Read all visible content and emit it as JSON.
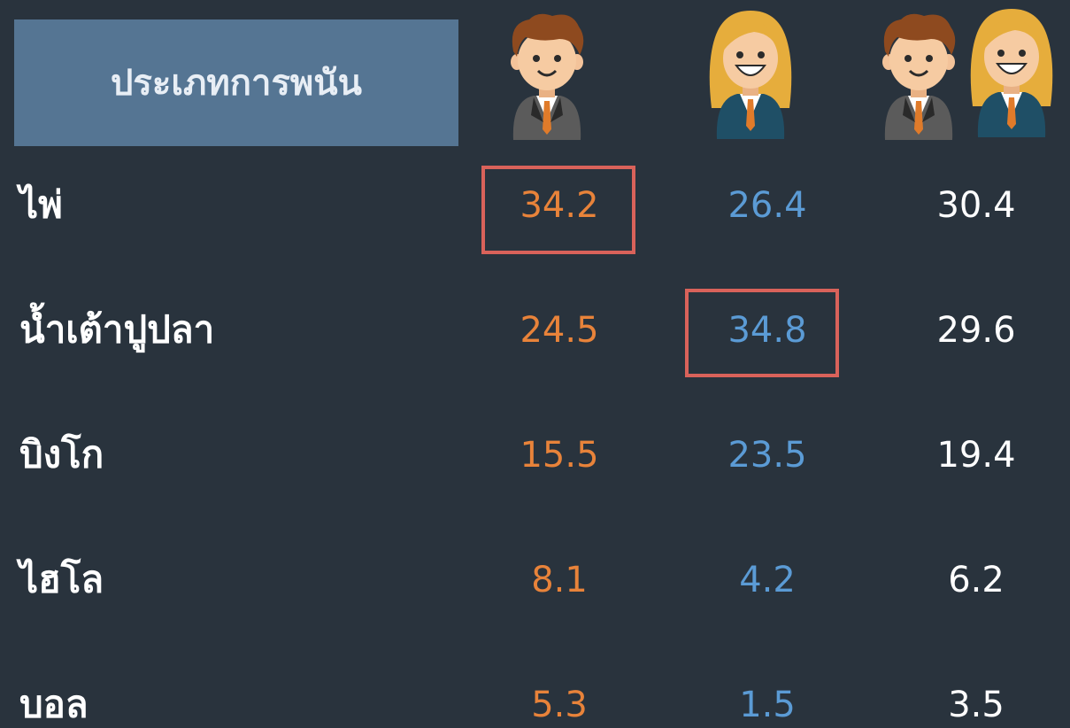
{
  "header": {
    "title": "ประเภทการพนัน"
  },
  "table": {
    "rows": [
      [
        "ไพ่",
        "34.2",
        "26.4",
        "30.4"
      ],
      [
        "น้ำเต้าปูปลา",
        "24.5",
        "34.8",
        "29.6"
      ],
      [
        "บิงโก",
        "15.5",
        "23.5",
        "19.4"
      ],
      [
        "ไฮโล",
        "8.1",
        "4.2",
        "6.2"
      ],
      [
        "บอล",
        "5.3",
        "1.5",
        "3.5"
      ]
    ]
  }
}
